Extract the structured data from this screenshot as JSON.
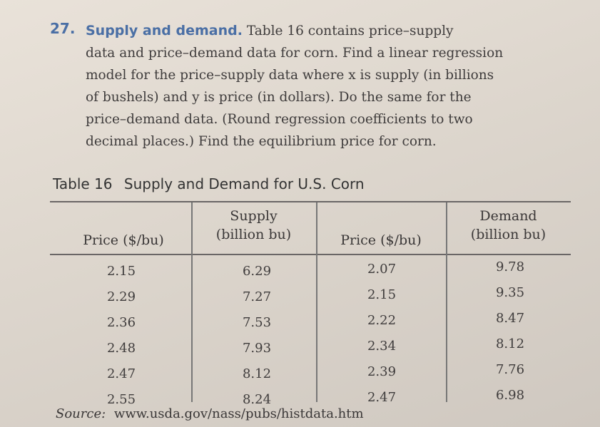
{
  "problem": {
    "number": "27.",
    "title": "Supply and demand.",
    "lines": [
      "Table 16 contains price–supply",
      "data and price–demand data for corn. Find a linear regression",
      "model for the price–supply data where x is supply (in billions",
      "of bushels) and y is price (in dollars). Do the same for the",
      "price–demand data. (Round regression coefficients to two",
      "decimal places.) Find the equilibrium price for corn."
    ]
  },
  "table": {
    "caption_label": "Table 16",
    "caption_title": "Supply and Demand for U.S. Corn",
    "headers": {
      "price1": "Price ($/bu)",
      "supply_line1": "Supply",
      "supply_line2": "(billion bu)",
      "price2": "Price ($/bu)",
      "demand_line1": "Demand",
      "demand_line2": "(billion bu)"
    },
    "price_supply": [
      "2.15",
      "2.29",
      "2.36",
      "2.48",
      "2.47",
      "2.55"
    ],
    "supply": [
      "6.29",
      "7.27",
      "7.53",
      "7.93",
      "8.12",
      "8.24"
    ],
    "price_demand": [
      "2.07",
      "2.15",
      "2.22",
      "2.34",
      "2.39",
      "2.47"
    ],
    "demand": [
      "9.78",
      "9.35",
      "8.47",
      "8.12",
      "7.76",
      "6.98"
    ]
  },
  "source": {
    "label": "Source:",
    "url": "www.usda.gov/nass/pubs/histdata.htm"
  }
}
